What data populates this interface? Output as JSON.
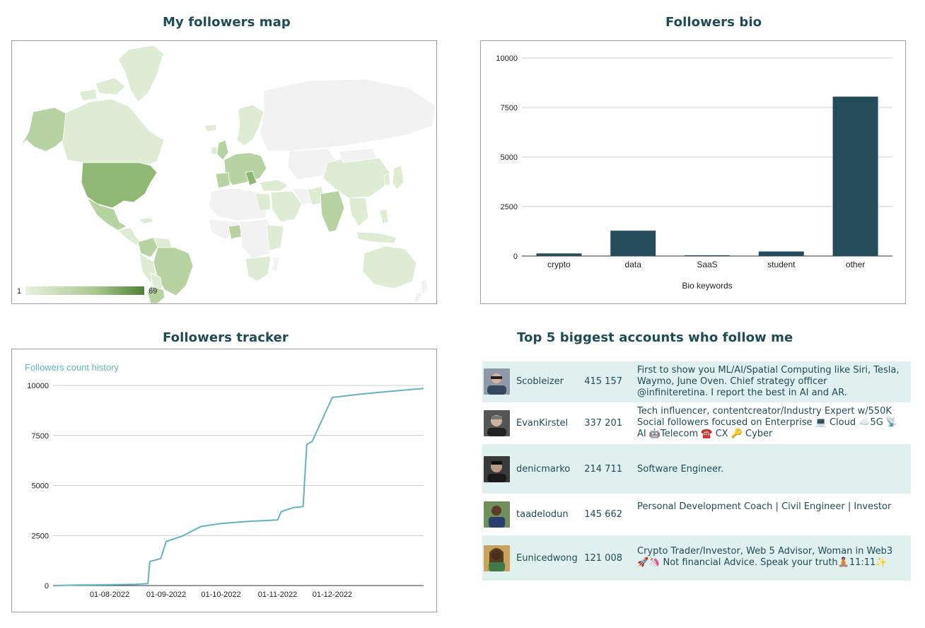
{
  "panels": {
    "map_title": "My followers map",
    "bio_title": "Followers bio",
    "tracker_title": "Followers tracker",
    "top_title": "Top 5 biggest accounts who follow me"
  },
  "map": {
    "legend_min": "1",
    "legend_max": "69",
    "colors": {
      "empty": "#f2f2f2",
      "low": "#dfecd4",
      "mid": "#b8d3a2",
      "high": "#8fb874",
      "max": "#4e8233"
    }
  },
  "chart_data": [
    {
      "type": "bar",
      "categories": [
        "crypto",
        "data",
        "SaaS",
        "student",
        "other"
      ],
      "values": [
        130,
        1280,
        40,
        230,
        8050
      ],
      "xlabel": "Bio keywords",
      "ylabel": "",
      "ylim": [
        0,
        10000
      ],
      "yticks": [
        "0",
        "2500",
        "5000",
        "7500",
        "10000"
      ],
      "grid": true,
      "color": "#254c5a"
    },
    {
      "type": "line",
      "title": "Followers count history",
      "x": [
        "01-07-2022",
        "15-07-2022",
        "01-08-2022",
        "15-08-2022",
        "22-08-2022",
        "23-08-2022",
        "29-08-2022",
        "01-09-2022",
        "10-09-2022",
        "20-09-2022",
        "01-10-2022",
        "15-10-2022",
        "01-11-2022",
        "03-11-2022",
        "10-11-2022",
        "15-11-2022",
        "17-11-2022",
        "20-11-2022",
        "01-12-2022",
        "15-12-2022",
        "01-01-2023",
        "20-01-2023"
      ],
      "series": [
        {
          "values": [
            0,
            30,
            40,
            60,
            100,
            1200,
            1350,
            2200,
            2480,
            2950,
            3100,
            3200,
            3280,
            3700,
            3900,
            3950,
            7050,
            7200,
            9400,
            9550,
            9700,
            9850
          ]
        }
      ],
      "xticks": [
        "01-08-2022",
        "01-09-2022",
        "01-10-2022",
        "01-11-2022",
        "01-12-2022"
      ],
      "yticks": [
        "0",
        "2500",
        "5000",
        "7500",
        "10000"
      ],
      "ylim": [
        0,
        10000
      ],
      "grid": true,
      "color": "#62b3bf"
    }
  ],
  "accounts": [
    {
      "name": "Scobleizer",
      "count": "415 157",
      "bio": "First to show you ML/AI/Spatial Computing like Siri, Tesla, Waymo, June Oven. Chief strategy officer @infiniteretina. I report the best in AI and AR."
    },
    {
      "name": "EvanKirstel",
      "count": "337 201",
      "bio": "Tech influencer, contentcreator/Industry Expert w/550K Social followers focused on Enterprise 💻 Cloud ☁️5G 📡AI 🤖Telecom ☎️ CX 🔑 Cyber"
    },
    {
      "name": "denicmarko",
      "count": "214 711",
      "bio": "Software Engineer."
    },
    {
      "name": "taadelodun",
      "count": "145 662",
      "bio": "Personal Development Coach | Civil Engineer | Investor"
    },
    {
      "name": "Eunicedwong",
      "count": "121 008",
      "bio": "Crypto Trader/Investor, Web 5 Advisor, Woman in Web3 🚀🦄 Not financial Advice. Speak your truth🧘🏽11:11✨"
    }
  ]
}
